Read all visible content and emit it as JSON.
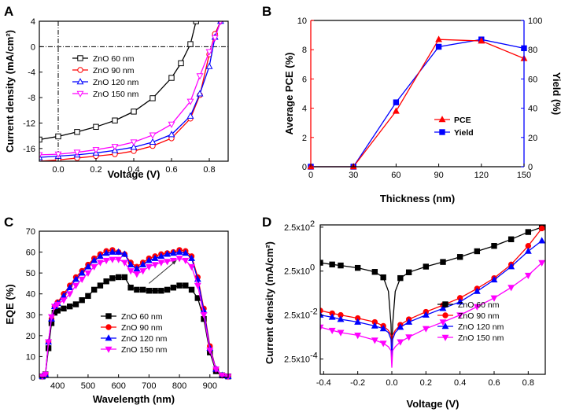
{
  "chart_data": [
    {
      "panel": "A",
      "type": "line",
      "xlabel": "Voltage (V)",
      "ylabel": "Current density (mA/cm²)",
      "xlim": [
        -0.1,
        0.9
      ],
      "ylim": [
        -18,
        4
      ],
      "xticks": [
        0.0,
        0.2,
        0.4,
        0.6,
        0.8
      ],
      "xtick_labels": [
        "0.0",
        "0.2",
        "0.4",
        "0.6",
        "0.8"
      ],
      "yticks": [
        4,
        0,
        -4,
        -8,
        -12,
        -16
      ],
      "ytick_labels": [
        "4",
        "0",
        "-4",
        "-8",
        "-12",
        "-16"
      ],
      "series": [
        {
          "name": "ZnO 60 nm",
          "color": "#000000",
          "marker": "square",
          "x": [
            -0.1,
            0.0,
            0.1,
            0.2,
            0.3,
            0.4,
            0.5,
            0.6,
            0.65,
            0.7,
            0.73
          ],
          "y": [
            -14.6,
            -14.1,
            -13.4,
            -12.6,
            -11.6,
            -10.2,
            -8.1,
            -4.9,
            -2.6,
            0.4,
            4.0
          ]
        },
        {
          "name": "ZnO 90 nm",
          "color": "#ff0000",
          "marker": "circle",
          "x": [
            -0.1,
            0.0,
            0.1,
            0.2,
            0.3,
            0.4,
            0.5,
            0.6,
            0.7,
            0.75,
            0.8,
            0.83,
            0.86
          ],
          "y": [
            -18.0,
            -17.8,
            -17.5,
            -17.2,
            -16.9,
            -16.4,
            -15.6,
            -14.4,
            -11.3,
            -7.6,
            -1.2,
            2.0,
            4.0
          ]
        },
        {
          "name": "ZnO 120 nm",
          "color": "#0000ff",
          "marker": "triangle-up",
          "x": [
            -0.1,
            0.0,
            0.1,
            0.2,
            0.3,
            0.4,
            0.5,
            0.6,
            0.7,
            0.75,
            0.8,
            0.83,
            0.86
          ],
          "y": [
            -17.4,
            -17.2,
            -17.0,
            -16.7,
            -16.3,
            -15.8,
            -15.0,
            -13.8,
            -10.9,
            -7.4,
            -3.1,
            1.5,
            4.0
          ]
        },
        {
          "name": "ZnO 150 nm",
          "color": "#ff00ff",
          "marker": "triangle-down",
          "x": [
            -0.1,
            0.0,
            0.1,
            0.2,
            0.3,
            0.4,
            0.5,
            0.6,
            0.7,
            0.75,
            0.8,
            0.83,
            0.86
          ],
          "y": [
            -17.0,
            -16.9,
            -16.6,
            -16.2,
            -15.7,
            -15.0,
            -13.9,
            -12.2,
            -8.6,
            -4.6,
            -0.8,
            1.4,
            4.0
          ]
        }
      ],
      "legend_position": "top-left"
    },
    {
      "panel": "B",
      "type": "line",
      "xlabel": "Thickness (nm)",
      "ylabel_left": "Average PCE (%)",
      "ylabel_right": "Yield (%)",
      "xlim": [
        0,
        150
      ],
      "ylim_left": [
        0,
        10
      ],
      "ylim_right": [
        0,
        100
      ],
      "xticks": [
        0,
        30,
        60,
        90,
        120,
        150
      ],
      "xtick_labels": [
        "0",
        "30",
        "60",
        "90",
        "120",
        "150"
      ],
      "yticks_left": [
        0,
        2,
        4,
        6,
        8,
        10
      ],
      "ytick_labels_left": [
        "0",
        "2",
        "4",
        "6",
        "8",
        "10"
      ],
      "yticks_right": [
        0,
        20,
        40,
        60,
        80,
        100
      ],
      "ytick_labels_right": [
        "0",
        "20",
        "40",
        "60",
        "80",
        "100"
      ],
      "categories": [
        0,
        30,
        60,
        90,
        120,
        150
      ],
      "series": [
        {
          "name": "PCE",
          "axis": "left",
          "color": "#ff0000",
          "marker": "triangle-up",
          "values": [
            0,
            0,
            3.8,
            8.7,
            8.6,
            7.4
          ]
        },
        {
          "name": "Yield",
          "axis": "right",
          "color": "#0000ff",
          "marker": "square",
          "values": [
            0,
            0,
            44,
            82,
            87,
            81
          ]
        }
      ],
      "legend_position": "center-right",
      "left_axis_color": "#ff0000",
      "right_axis_color": "#0000ff"
    },
    {
      "panel": "C",
      "type": "line",
      "xlabel": "Wavelength (nm)",
      "ylabel": "EQE (%)",
      "xlim": [
        340,
        960
      ],
      "ylim": [
        0,
        70
      ],
      "xticks": [
        400,
        500,
        600,
        700,
        800,
        900
      ],
      "xtick_labels": [
        "400",
        "500",
        "600",
        "700",
        "800",
        "900"
      ],
      "yticks": [
        0,
        10,
        20,
        30,
        40,
        50,
        60,
        70
      ],
      "ytick_labels": [
        "0",
        "10",
        "20",
        "30",
        "40",
        "50",
        "60",
        "70"
      ],
      "x": [
        350,
        360,
        370,
        380,
        390,
        400,
        420,
        440,
        460,
        480,
        500,
        520,
        540,
        560,
        580,
        600,
        620,
        640,
        660,
        680,
        700,
        720,
        740,
        760,
        780,
        800,
        820,
        840,
        860,
        880,
        900,
        920,
        940,
        960
      ],
      "series": [
        {
          "name": "ZnO 60 nm",
          "color": "#000000",
          "marker": "square",
          "values": [
            0.5,
            1.5,
            14,
            26,
            31,
            32,
            33,
            34,
            35,
            37,
            39,
            42,
            44,
            46,
            47.5,
            48,
            48,
            43,
            42,
            42,
            41.5,
            41.5,
            41.5,
            42,
            43,
            44,
            44,
            42,
            38,
            28,
            12,
            3,
            1,
            0.5
          ]
        },
        {
          "name": "ZnO 90 nm",
          "color": "#ff0000",
          "marker": "circle",
          "values": [
            0.5,
            1.5,
            17,
            28,
            34,
            36,
            40,
            44,
            48,
            51,
            54,
            57,
            59,
            60.5,
            61,
            60,
            59,
            55,
            53,
            55,
            57,
            58,
            59,
            59.5,
            60,
            61,
            60.5,
            58,
            48,
            33,
            15,
            4,
            1,
            0.5
          ]
        },
        {
          "name": "ZnO 120 nm",
          "color": "#0000ff",
          "marker": "triangle-up",
          "values": [
            0.5,
            1.5,
            17,
            28,
            34,
            35.5,
            39,
            43,
            47,
            50,
            53,
            56,
            58,
            59.5,
            60,
            60,
            59,
            54,
            52,
            54,
            56,
            57,
            58,
            59,
            59.5,
            60,
            59.5,
            57,
            47,
            32,
            14,
            4,
            1,
            0.5
          ]
        },
        {
          "name": "ZnO 150 nm",
          "color": "#ff00ff",
          "marker": "triangle-down",
          "values": [
            0.5,
            1.5,
            17,
            29,
            34,
            35,
            37,
            40,
            44,
            47,
            50,
            53,
            55,
            56,
            56.5,
            56.5,
            55,
            51,
            49.5,
            51,
            53,
            54,
            55,
            55.5,
            56,
            57,
            56,
            53,
            44,
            30,
            13,
            4,
            1,
            0.5
          ]
        }
      ],
      "legend_position": "bottom-center",
      "arrow_annotation": {
        "from": [
          700,
          45
        ],
        "to": [
          790,
          56
        ]
      }
    },
    {
      "panel": "D",
      "type": "line",
      "xlabel": "Voltage (V)",
      "ylabel": "Current density (mA/cm²)",
      "yscale": "log",
      "xlim": [
        -0.42,
        0.9
      ],
      "ylim_log10": [
        -4.3,
        2.5
      ],
      "xticks": [
        -0.4,
        -0.2,
        0.0,
        0.2,
        0.4,
        0.6,
        0.8
      ],
      "xtick_labels": [
        "-0.4",
        "-0.2",
        "0.0",
        "0.2",
        "0.4",
        "0.6",
        "0.8"
      ],
      "yticks": [
        0.00025,
        0.025,
        2.5,
        250
      ],
      "ytick_labels": [
        "2.5x10",
        "2.5x10",
        "2.5x10",
        "2.5x10"
      ],
      "ytick_exponents": [
        "-4",
        "-2",
        "0",
        "2"
      ],
      "series": [
        {
          "name": "ZnO 60 nm",
          "color": "#000000",
          "marker": "square",
          "x": [
            -0.42,
            -0.35,
            -0.3,
            -0.2,
            -0.1,
            -0.05,
            -0.02,
            -0.005,
            0.0,
            0.005,
            0.02,
            0.05,
            0.1,
            0.2,
            0.3,
            0.4,
            0.5,
            0.6,
            0.7,
            0.8,
            0.88
          ],
          "y": [
            6,
            5,
            4.5,
            3.5,
            2.3,
            1.3,
            0.3,
            0.01,
            0.0003,
            0.01,
            0.3,
            1.2,
            2.2,
            4,
            6.5,
            11,
            20,
            35,
            70,
            150,
            250
          ]
        },
        {
          "name": "ZnO 90 nm",
          "color": "#ff0000",
          "marker": "circle",
          "x": [
            -0.42,
            -0.35,
            -0.3,
            -0.2,
            -0.1,
            -0.05,
            -0.02,
            -0.005,
            0.0,
            0.005,
            0.02,
            0.05,
            0.1,
            0.2,
            0.3,
            0.4,
            0.5,
            0.6,
            0.7,
            0.8,
            0.88
          ],
          "y": [
            0.04,
            0.03,
            0.025,
            0.018,
            0.012,
            0.008,
            0.005,
            0.003,
            0.0003,
            0.003,
            0.005,
            0.009,
            0.016,
            0.035,
            0.07,
            0.15,
            0.4,
            1.2,
            5,
            35,
            220
          ]
        },
        {
          "name": "ZnO 120 nm",
          "color": "#0000ff",
          "marker": "triangle-up",
          "x": [
            -0.42,
            -0.35,
            -0.3,
            -0.2,
            -0.1,
            -0.05,
            -0.02,
            -0.005,
            0.0,
            0.005,
            0.02,
            0.05,
            0.1,
            0.2,
            0.3,
            0.4,
            0.5,
            0.6,
            0.7,
            0.8,
            0.88
          ],
          "y": [
            0.025,
            0.02,
            0.016,
            0.012,
            0.008,
            0.006,
            0.004,
            0.002,
            0.0003,
            0.002,
            0.004,
            0.007,
            0.012,
            0.025,
            0.05,
            0.1,
            0.3,
            1.0,
            4,
            20,
            60
          ]
        },
        {
          "name": "ZnO 150 nm",
          "color": "#ff00ff",
          "marker": "triangle-down",
          "x": [
            -0.42,
            -0.35,
            -0.3,
            -0.2,
            -0.1,
            -0.05,
            -0.02,
            -0.005,
            0.0,
            0.005,
            0.02,
            0.05,
            0.1,
            0.2,
            0.3,
            0.4,
            0.5,
            0.6,
            0.7,
            0.8,
            0.88
          ],
          "y": [
            0.007,
            0.005,
            0.004,
            0.003,
            0.0018,
            0.0013,
            0.0009,
            0.0006,
            0.0001,
            0.0006,
            0.0009,
            0.0015,
            0.0025,
            0.006,
            0.012,
            0.025,
            0.06,
            0.15,
            0.45,
            1.6,
            6
          ]
        }
      ],
      "legend_position": "bottom-right"
    }
  ]
}
